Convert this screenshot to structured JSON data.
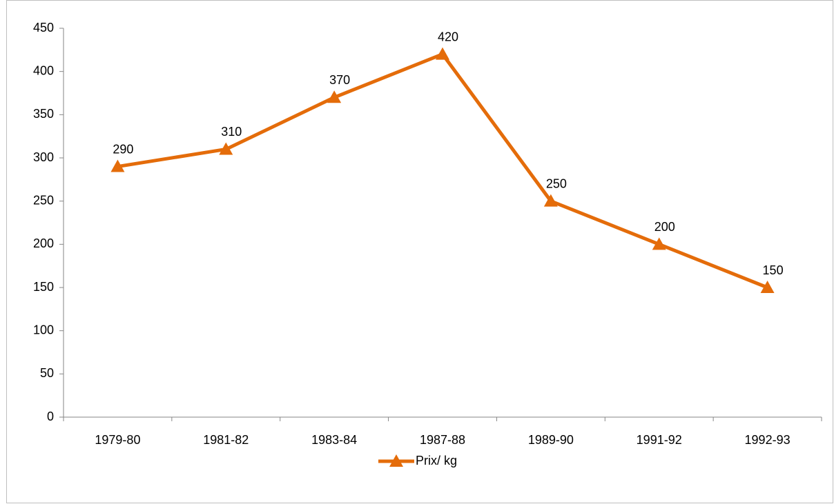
{
  "chart_data": {
    "type": "line",
    "categories": [
      "1979-80",
      "1981-82",
      "1983-84",
      "1987-88",
      "1989-90",
      "1991-92",
      "1992-93"
    ],
    "series": [
      {
        "name": "Prix/ kg",
        "color": "#e46c0a",
        "values": [
          290,
          310,
          370,
          420,
          250,
          200,
          150
        ]
      }
    ],
    "ylim": [
      0,
      450
    ],
    "yticks": [
      0,
      50,
      100,
      150,
      200,
      250,
      300,
      350,
      400,
      450
    ],
    "grid": false,
    "legend": "bottom",
    "data_labels": true
  }
}
